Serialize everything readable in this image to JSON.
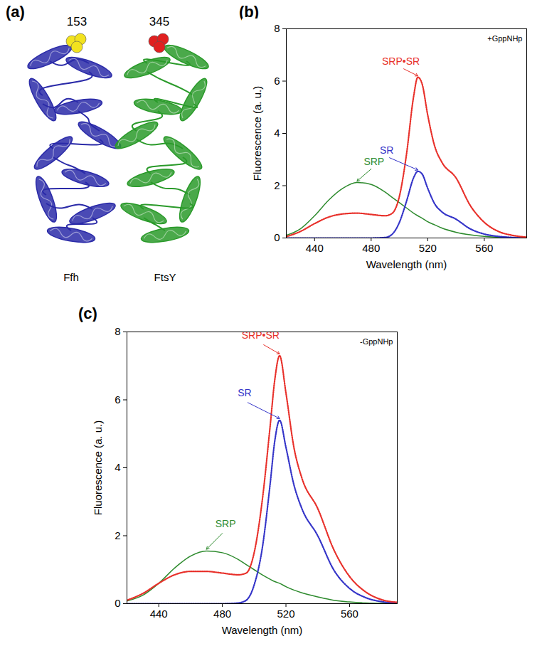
{
  "diagram": {
    "label": "(a)",
    "chains": [
      {
        "name": "Ffh",
        "color": "#2a2aa8",
        "residue": "153",
        "residue_color": "#f2e21e"
      },
      {
        "name": "FtsY",
        "color": "#2a9a2a",
        "residue": "345",
        "residue_color": "#e02020"
      }
    ]
  },
  "chart_data": [
    {
      "type": "line",
      "title": "(b)",
      "annotations": [
        "+GppNHp"
      ],
      "x_label": "Wavelength (nm)",
      "y_label": "Fluorescence (a. u.)",
      "x": [
        420,
        430,
        440,
        450,
        460,
        470,
        480,
        490,
        495,
        500,
        505,
        510,
        513,
        516,
        520,
        525,
        530,
        540,
        550,
        560,
        570,
        580,
        590
      ],
      "series": [
        {
          "name": "SRP",
          "color": "#2e8b2e",
          "line_style": "solid",
          "values": [
            0.1,
            0.35,
            0.85,
            1.45,
            1.9,
            2.12,
            2.05,
            1.75,
            1.55,
            1.35,
            1.15,
            0.95,
            0.85,
            0.76,
            0.62,
            0.5,
            0.38,
            0.22,
            0.12,
            0.06,
            0.03,
            0.01,
            0
          ]
        },
        {
          "name": "SR",
          "color": "#3434c8",
          "line_style": "dotted",
          "values": [
            0,
            0,
            0,
            0,
            0,
            0,
            0,
            0.02,
            0.15,
            0.6,
            1.4,
            2.3,
            2.55,
            2.45,
            1.9,
            1.3,
            1.0,
            0.72,
            0.35,
            0.15,
            0.06,
            0.02,
            0
          ]
        },
        {
          "name": "SRP•SR",
          "color": "#e8302a",
          "line_style": "dotted",
          "values": [
            0.05,
            0.25,
            0.55,
            0.8,
            0.92,
            0.95,
            0.9,
            0.85,
            0.95,
            1.6,
            3.2,
            5.4,
            6.15,
            5.9,
            4.7,
            3.5,
            2.9,
            2.3,
            1.25,
            0.6,
            0.25,
            0.1,
            0.03
          ]
        }
      ],
      "xlim": [
        420,
        590
      ],
      "xticks": [
        440,
        480,
        520,
        560
      ],
      "ylim": [
        0,
        8
      ],
      "yticks": [
        0,
        2,
        4,
        6,
        8
      ],
      "grid": false
    },
    {
      "type": "line",
      "title": "(c)",
      "annotations": [
        "-GppNHp"
      ],
      "x_label": "Wavelength (nm)",
      "y_label": "Fluorescence (a. u.)",
      "x": [
        420,
        430,
        440,
        450,
        460,
        470,
        480,
        490,
        495,
        500,
        505,
        510,
        513,
        516,
        520,
        525,
        530,
        540,
        550,
        560,
        570,
        580,
        590
      ],
      "series": [
        {
          "name": "SRP",
          "color": "#2e8b2e",
          "line_style": "solid",
          "values": [
            0.08,
            0.25,
            0.6,
            1.05,
            1.4,
            1.55,
            1.5,
            1.3,
            1.15,
            1.0,
            0.85,
            0.72,
            0.65,
            0.6,
            0.5,
            0.4,
            0.32,
            0.2,
            0.1,
            0.05,
            0.02,
            0.01,
            0
          ]
        },
        {
          "name": "SR",
          "color": "#3434c8",
          "line_style": "dotted",
          "values": [
            0,
            0,
            0,
            0,
            0,
            0,
            0,
            0.02,
            0.1,
            0.55,
            1.6,
            3.5,
            4.8,
            5.4,
            4.6,
            3.5,
            2.8,
            2.0,
            1.0,
            0.45,
            0.18,
            0.06,
            0.02
          ]
        },
        {
          "name": "SRP•SR",
          "color": "#e8302a",
          "line_style": "dotted",
          "values": [
            0.1,
            0.3,
            0.6,
            0.85,
            0.95,
            0.95,
            0.9,
            0.85,
            0.9,
            1.5,
            3.0,
            5.2,
            6.6,
            7.3,
            6.2,
            4.6,
            3.7,
            2.8,
            1.6,
            0.8,
            0.35,
            0.12,
            0.04
          ]
        }
      ],
      "xlim": [
        420,
        590
      ],
      "xticks": [
        440,
        480,
        520,
        560
      ],
      "ylim": [
        0,
        8
      ],
      "yticks": [
        0,
        2,
        4,
        6,
        8
      ],
      "grid": false
    }
  ]
}
